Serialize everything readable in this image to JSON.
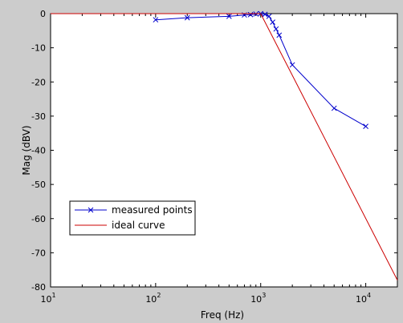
{
  "chart_data": {
    "type": "line",
    "xlabel": "Freq (Hz)",
    "ylabel": "Mag (dBV)",
    "xscale": "log",
    "xlim": [
      10,
      20000
    ],
    "ylim": [
      -80,
      0
    ],
    "x_ticks": [
      {
        "value": 10,
        "base": "10",
        "exp": "1"
      },
      {
        "value": 100,
        "base": "10",
        "exp": "2"
      },
      {
        "value": 1000,
        "base": "10",
        "exp": "3"
      },
      {
        "value": 10000,
        "base": "10",
        "exp": "4"
      }
    ],
    "y_ticks": [
      {
        "value": 0,
        "label": "0"
      },
      {
        "value": -10,
        "label": "-10"
      },
      {
        "value": -20,
        "label": "-20"
      },
      {
        "value": -30,
        "label": "-30"
      },
      {
        "value": -40,
        "label": "-40"
      },
      {
        "value": -50,
        "label": "-50"
      },
      {
        "value": -60,
        "label": "-60"
      },
      {
        "value": -70,
        "label": "-70"
      },
      {
        "value": -80,
        "label": "-80"
      }
    ],
    "grid": false,
    "legend_position": "bottom-left",
    "series": [
      {
        "name": "measured points",
        "color": "#0000cc",
        "marker": "x",
        "x": [
          100,
          200,
          500,
          700,
          800,
          900,
          1000,
          1100,
          1200,
          1300,
          1400,
          1500,
          2000,
          5000,
          10000
        ],
        "y": [
          -1.8,
          -1.2,
          -0.8,
          -0.4,
          -0.3,
          -0.1,
          0,
          -0.2,
          -0.8,
          -2.5,
          -4.5,
          -6.3,
          -15,
          -27.7,
          -33
        ]
      },
      {
        "name": "ideal curve",
        "color": "#cc0000",
        "marker": "none",
        "x": [
          10,
          1000,
          20000
        ],
        "y": [
          0,
          0,
          -78
        ]
      }
    ]
  }
}
